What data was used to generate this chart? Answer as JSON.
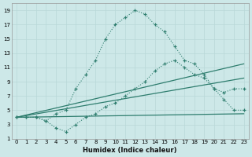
{
  "xlabel": "Humidex (Indice chaleur)",
  "background_color": "#cde8e8",
  "grid_color": "#b8d8d8",
  "line_color": "#2e7d6e",
  "xlim": [
    -0.5,
    23.5
  ],
  "ylim": [
    1,
    20
  ],
  "xticks": [
    0,
    1,
    2,
    3,
    4,
    5,
    6,
    7,
    8,
    9,
    10,
    11,
    12,
    13,
    14,
    15,
    16,
    17,
    18,
    19,
    20,
    21,
    22,
    23
  ],
  "yticks": [
    1,
    3,
    5,
    7,
    9,
    11,
    13,
    15,
    17,
    19
  ],
  "curve1_x": [
    0,
    1,
    2,
    3,
    4,
    5,
    6,
    7,
    8,
    9,
    10,
    11,
    12,
    13,
    14,
    15,
    16,
    17,
    18,
    19,
    20,
    21,
    22,
    23
  ],
  "curve1_y": [
    4,
    4,
    4,
    3.5,
    4.5,
    5,
    8,
    10,
    12,
    15,
    17,
    18,
    19,
    18.5,
    17,
    16,
    14,
    12,
    11.5,
    10,
    8,
    6.5,
    5,
    5
  ],
  "curve2_x": [
    0,
    1,
    2,
    3,
    4,
    5,
    6,
    7,
    8,
    9,
    10,
    11,
    12,
    13,
    14,
    15,
    16,
    17,
    18,
    19,
    20,
    21,
    22,
    23
  ],
  "curve2_y": [
    4,
    4,
    4,
    3.5,
    2.5,
    2,
    3,
    4,
    4.5,
    5.5,
    6,
    7,
    8,
    9,
    10.5,
    11.5,
    12,
    11,
    10,
    9.5,
    8,
    7.5,
    8,
    8
  ],
  "line1_x": [
    0,
    23
  ],
  "line1_y": [
    4,
    11.5
  ],
  "line2_x": [
    0,
    23
  ],
  "line2_y": [
    4,
    9.5
  ],
  "line3_x": [
    0,
    23
  ],
  "line3_y": [
    4,
    4.5
  ]
}
